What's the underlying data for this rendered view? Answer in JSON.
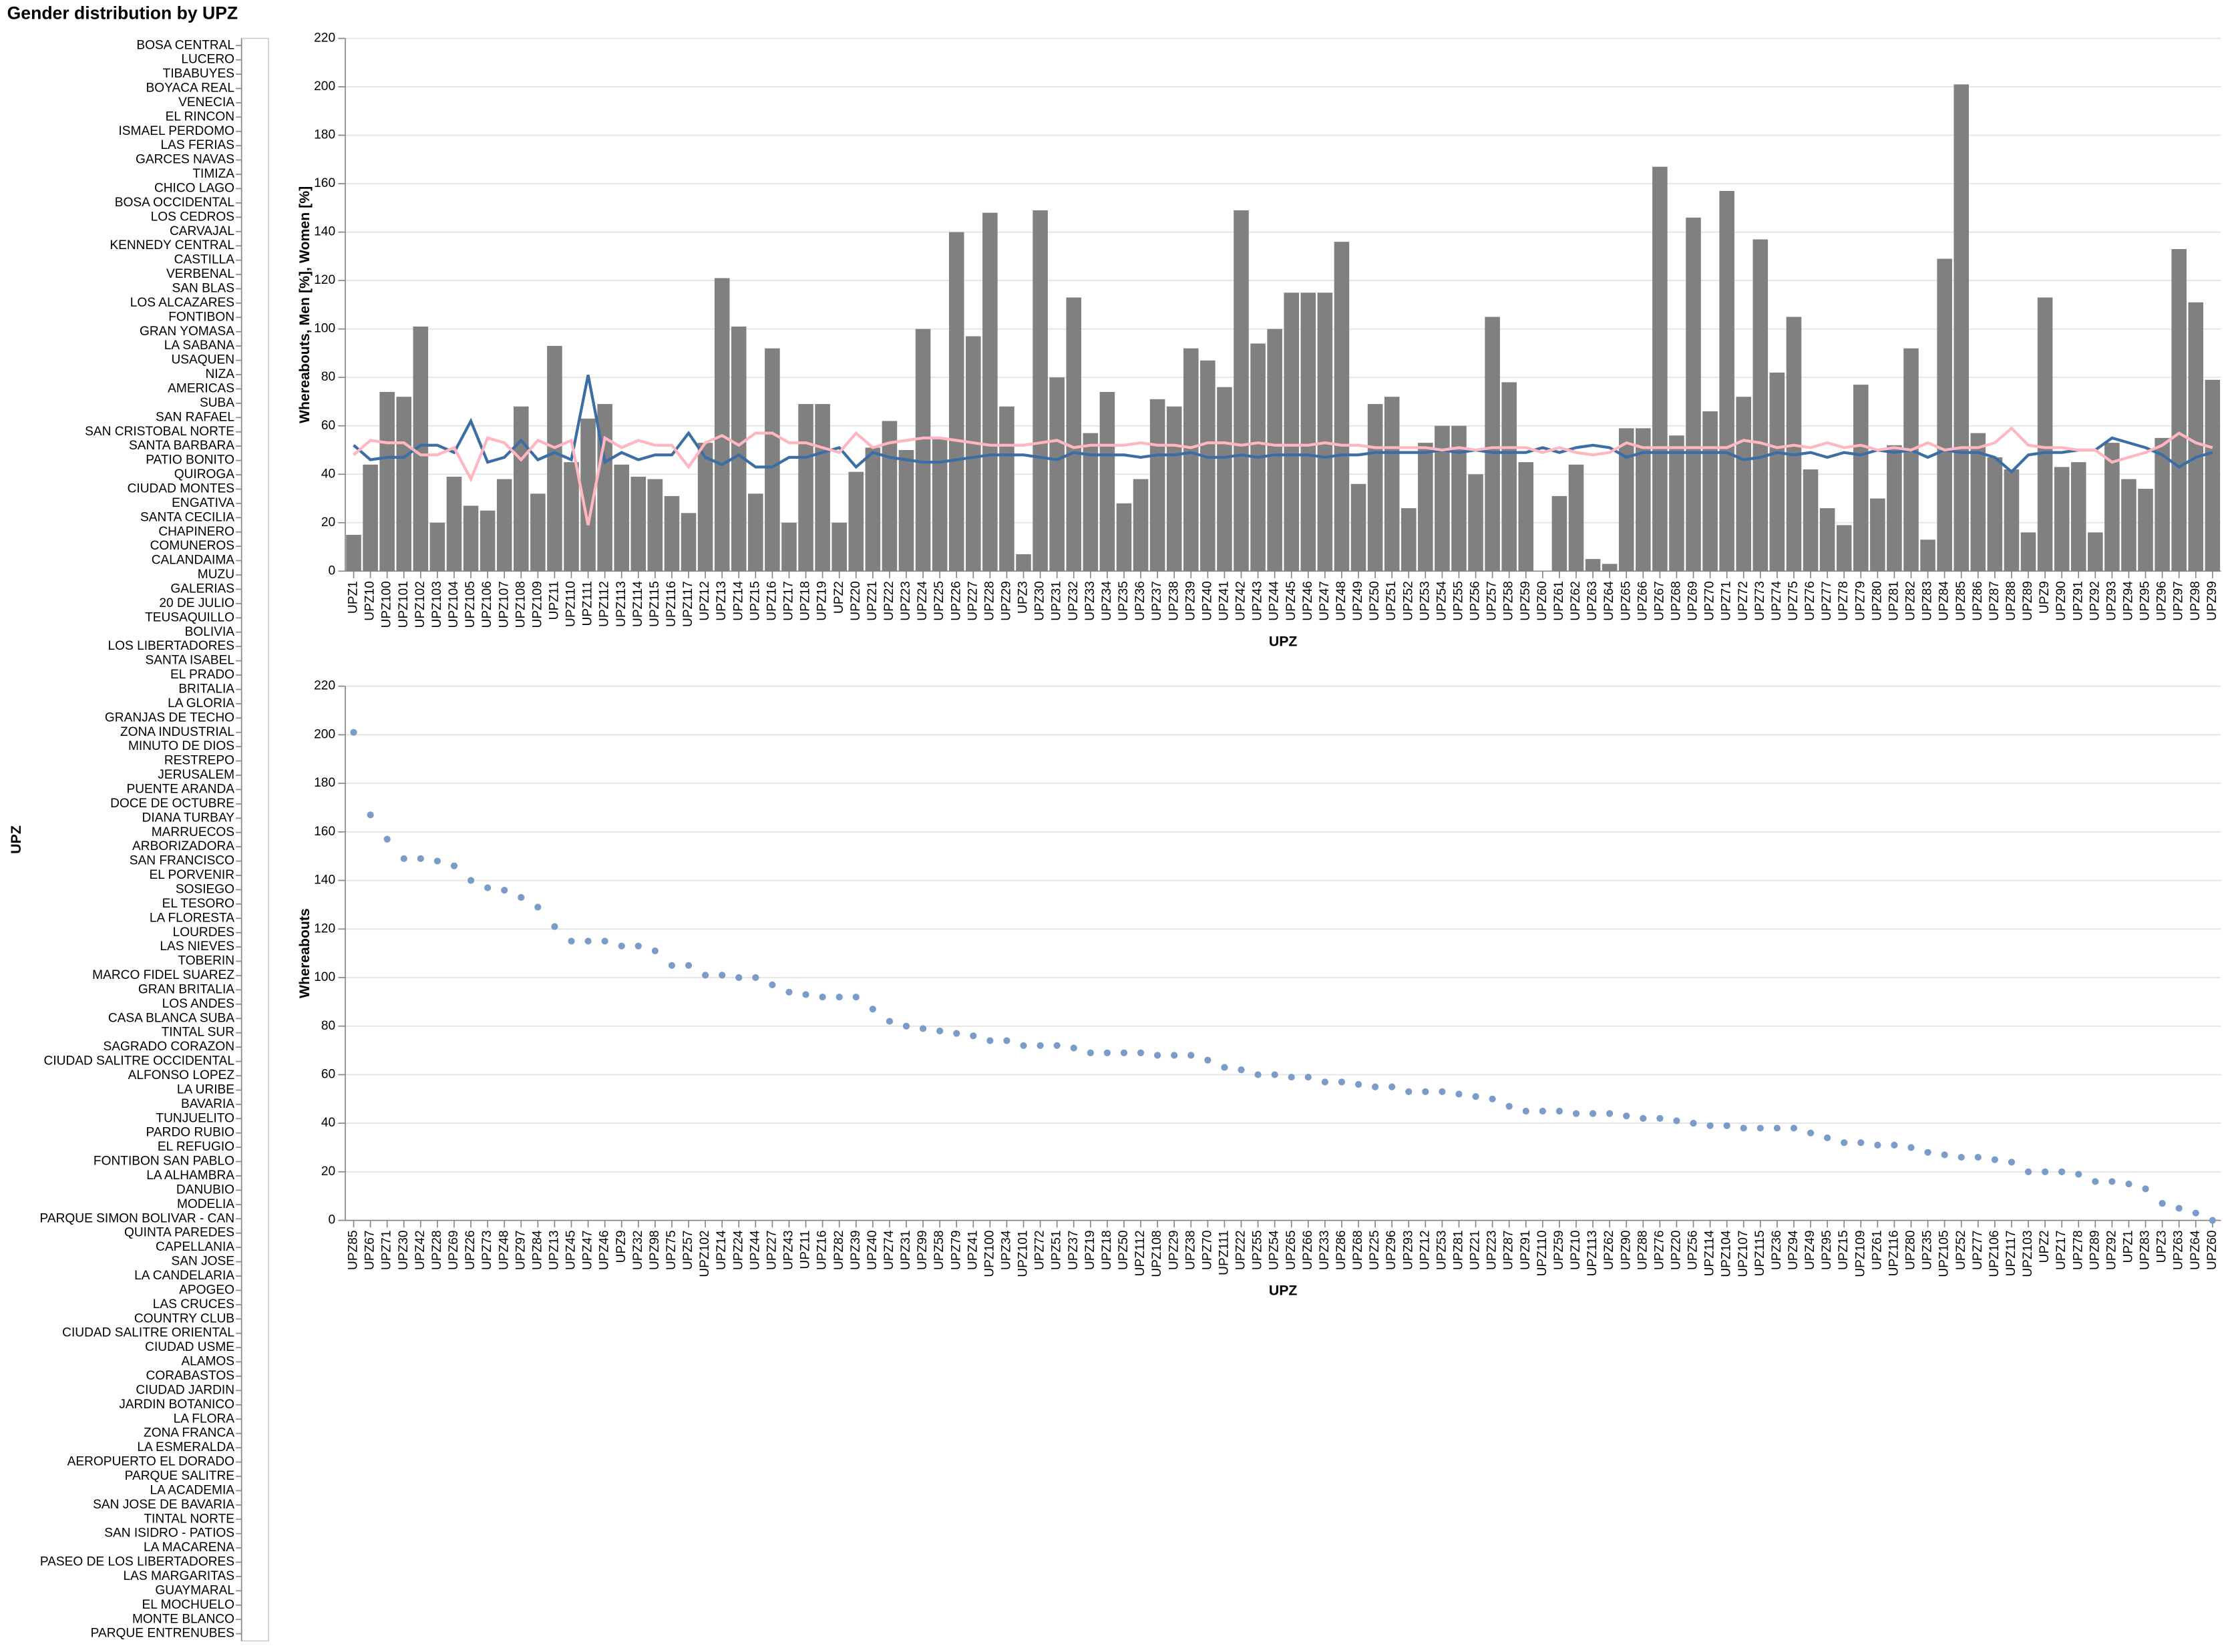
{
  "chart_data": [
    {
      "type": "strip",
      "title": "Gender distribution by UPZ",
      "y_label": "UPZ",
      "categories": [
        "BOSA CENTRAL",
        "LUCERO",
        "TIBABUYES",
        "BOYACA REAL",
        "VENECIA",
        "EL RINCON",
        "ISMAEL PERDOMO",
        "LAS FERIAS",
        "GARCES NAVAS",
        "TIMIZA",
        "CHICO LAGO",
        "BOSA OCCIDENTAL",
        "LOS CEDROS",
        "CARVAJAL",
        "KENNEDY CENTRAL",
        "CASTILLA",
        "VERBENAL",
        "SAN BLAS",
        "LOS ALCAZARES",
        "FONTIBON",
        "GRAN YOMASA",
        "LA SABANA",
        "USAQUEN",
        "NIZA",
        "AMERICAS",
        "SUBA",
        "SAN RAFAEL",
        "SAN CRISTOBAL NORTE",
        "SANTA BARBARA",
        "PATIO BONITO",
        "QUIROGA",
        "CIUDAD MONTES",
        "ENGATIVA",
        "SANTA CECILIA",
        "CHAPINERO",
        "COMUNEROS",
        "CALANDAIMA",
        "MUZU",
        "GALERIAS",
        "20 DE JULIO",
        "TEUSAQUILLO",
        "BOLIVIA",
        "LOS LIBERTADORES",
        "SANTA ISABEL",
        "EL PRADO",
        "BRITALIA",
        "LA GLORIA",
        "GRANJAS DE TECHO",
        "ZONA INDUSTRIAL",
        "MINUTO DE DIOS",
        "RESTREPO",
        "JERUSALEM",
        "PUENTE ARANDA",
        "DOCE DE OCTUBRE",
        "DIANA TURBAY",
        "MARRUECOS",
        "ARBORIZADORA",
        "SAN FRANCISCO",
        "EL PORVENIR",
        "SOSIEGO",
        "EL TESORO",
        "LA FLORESTA",
        "LOURDES",
        "LAS NIEVES",
        "TOBERIN",
        "MARCO FIDEL SUAREZ",
        "GRAN BRITALIA",
        "LOS ANDES",
        "CASA BLANCA SUBA",
        "TINTAL SUR",
        "SAGRADO CORAZON",
        "CIUDAD SALITRE OCCIDENTAL",
        "ALFONSO LOPEZ",
        "LA URIBE",
        "BAVARIA",
        "TUNJUELITO",
        "PARDO RUBIO",
        "EL REFUGIO",
        "FONTIBON SAN PABLO",
        "LA ALHAMBRA",
        "DANUBIO",
        "MODELIA",
        "PARQUE SIMON BOLIVAR - CAN",
        "QUINTA PAREDES",
        "CAPELLANIA",
        "SAN JOSE",
        "LA CANDELARIA",
        "APOGEO",
        "LAS CRUCES",
        "COUNTRY CLUB",
        "CIUDAD SALITRE ORIENTAL",
        "CIUDAD USME",
        "ALAMOS",
        "CORABASTOS",
        "CIUDAD JARDIN",
        "JARDIN BOTANICO",
        "LA FLORA",
        "ZONA FRANCA",
        "LA ESMERALDA",
        "AEROPUERTO EL DORADO",
        "PARQUE SALITRE",
        "LA ACADEMIA",
        "SAN JOSE DE BAVARIA",
        "TINTAL NORTE",
        "SAN ISIDRO - PATIOS",
        "LA MACARENA",
        "PASEO DE LOS LIBERTADORES",
        "LAS MARGARITAS",
        "GUAYMARAL",
        "EL MOCHUELO",
        "MONTE BLANCO",
        "PARQUE ENTRENUBES"
      ]
    },
    {
      "type": "bar",
      "x_label": "UPZ",
      "y_label": "Whereabouts, Men [%], Women [%]",
      "categories": [
        "UPZ1",
        "UPZ10",
        "UPZ100",
        "UPZ101",
        "UPZ102",
        "UPZ103",
        "UPZ104",
        "UPZ105",
        "UPZ106",
        "UPZ107",
        "UPZ108",
        "UPZ109",
        "UPZ11",
        "UPZ110",
        "UPZ111",
        "UPZ112",
        "UPZ113",
        "UPZ114",
        "UPZ115",
        "UPZ116",
        "UPZ117",
        "UPZ12",
        "UPZ13",
        "UPZ14",
        "UPZ15",
        "UPZ16",
        "UPZ17",
        "UPZ18",
        "UPZ19",
        "UPZ2",
        "UPZ20",
        "UPZ21",
        "UPZ22",
        "UPZ23",
        "UPZ24",
        "UPZ25",
        "UPZ26",
        "UPZ27",
        "UPZ28",
        "UPZ29",
        "UPZ3",
        "UPZ30",
        "UPZ31",
        "UPZ32",
        "UPZ33",
        "UPZ34",
        "UPZ35",
        "UPZ36",
        "UPZ37",
        "UPZ38",
        "UPZ39",
        "UPZ40",
        "UPZ41",
        "UPZ42",
        "UPZ43",
        "UPZ44",
        "UPZ45",
        "UPZ46",
        "UPZ47",
        "UPZ48",
        "UPZ49",
        "UPZ50",
        "UPZ51",
        "UPZ52",
        "UPZ53",
        "UPZ54",
        "UPZ55",
        "UPZ56",
        "UPZ57",
        "UPZ58",
        "UPZ59",
        "UPZ60",
        "UPZ61",
        "UPZ62",
        "UPZ63",
        "UPZ64",
        "UPZ65",
        "UPZ66",
        "UPZ67",
        "UPZ68",
        "UPZ69",
        "UPZ70",
        "UPZ71",
        "UPZ72",
        "UPZ73",
        "UPZ74",
        "UPZ75",
        "UPZ76",
        "UPZ77",
        "UPZ78",
        "UPZ79",
        "UPZ80",
        "UPZ81",
        "UPZ82",
        "UPZ83",
        "UPZ84",
        "UPZ85",
        "UPZ86",
        "UPZ87",
        "UPZ88",
        "UPZ89",
        "UPZ9",
        "UPZ90",
        "UPZ91",
        "UPZ92",
        "UPZ93",
        "UPZ94",
        "UPZ95",
        "UPZ96",
        "UPZ97",
        "UPZ98",
        "UPZ99"
      ],
      "series": [
        {
          "mark": "bar",
          "color": "#808080",
          "values": [
            15,
            44,
            74,
            72,
            101,
            20,
            39,
            27,
            25,
            38,
            68,
            32,
            93,
            45,
            63,
            69,
            44,
            39,
            38,
            31,
            24,
            53,
            121,
            101,
            32,
            92,
            20,
            69,
            69,
            20,
            41,
            51,
            62,
            50,
            100,
            55,
            140,
            97,
            148,
            68,
            7,
            149,
            80,
            113,
            57,
            74,
            28,
            38,
            71,
            68,
            92,
            87,
            76,
            149,
            94,
            100,
            115,
            115,
            115,
            136,
            36,
            69,
            72,
            26,
            53,
            60,
            60,
            40,
            105,
            78,
            45,
            0,
            31,
            44,
            5,
            3,
            59,
            59,
            167,
            56,
            146,
            66,
            157,
            72,
            137,
            82,
            105,
            42,
            26,
            19,
            77,
            30,
            52,
            92,
            13,
            129,
            201,
            57,
            47,
            42,
            16,
            113,
            43,
            45,
            16,
            53,
            38,
            34,
            55,
            133,
            111,
            79
          ]
        },
        {
          "mark": "line",
          "color": "#3b6ea5",
          "values": [
            52,
            46,
            47,
            47,
            52,
            52,
            49,
            62,
            45,
            47,
            54,
            46,
            49,
            46,
            81,
            45,
            49,
            46,
            48,
            48,
            57,
            47,
            44,
            48,
            43,
            43,
            47,
            47,
            49,
            51,
            43,
            49,
            47,
            46,
            45,
            45,
            46,
            47,
            48,
            48,
            48,
            47,
            46,
            49,
            48,
            48,
            48,
            47,
            48,
            48,
            49,
            47,
            47,
            48,
            47,
            48,
            48,
            48,
            47,
            48,
            48,
            49,
            49,
            49,
            49,
            50,
            49,
            50,
            49,
            49,
            49,
            51,
            49,
            51,
            52,
            51,
            47,
            49,
            49,
            49,
            49,
            49,
            49,
            46,
            47,
            49,
            48,
            49,
            47,
            49,
            48,
            50,
            49,
            50,
            47,
            50,
            49,
            49,
            47,
            41,
            48,
            49,
            49,
            50,
            50,
            55,
            53,
            51,
            48,
            43,
            47,
            49
          ]
        },
        {
          "mark": "line",
          "color": "#ffb6c1",
          "values": [
            48,
            54,
            53,
            53,
            48,
            48,
            51,
            38,
            55,
            53,
            46,
            54,
            51,
            54,
            19,
            55,
            51,
            54,
            52,
            52,
            43,
            53,
            56,
            52,
            57,
            57,
            53,
            53,
            51,
            49,
            57,
            51,
            53,
            54,
            55,
            55,
            54,
            53,
            52,
            52,
            52,
            53,
            54,
            51,
            52,
            52,
            52,
            53,
            52,
            52,
            51,
            53,
            53,
            52,
            53,
            52,
            52,
            52,
            53,
            52,
            52,
            51,
            51,
            51,
            51,
            50,
            51,
            50,
            51,
            51,
            51,
            49,
            51,
            49,
            48,
            49,
            53,
            51,
            51,
            51,
            51,
            51,
            51,
            54,
            53,
            51,
            52,
            51,
            53,
            51,
            52,
            50,
            51,
            50,
            53,
            50,
            51,
            51,
            53,
            59,
            52,
            51,
            51,
            50,
            50,
            45,
            47,
            49,
            52,
            57,
            53,
            51
          ]
        }
      ],
      "ylim": [
        0,
        220
      ],
      "yticks": [
        0,
        20,
        40,
        60,
        80,
        100,
        120,
        140,
        160,
        180,
        200,
        220
      ],
      "grid": true
    },
    {
      "type": "scatter",
      "x_label": "UPZ",
      "y_label": "Whereabouts",
      "color": "#7b9cc9",
      "categories": [
        "UPZ85",
        "UPZ67",
        "UPZ71",
        "UPZ30",
        "UPZ42",
        "UPZ28",
        "UPZ69",
        "UPZ26",
        "UPZ73",
        "UPZ48",
        "UPZ97",
        "UPZ84",
        "UPZ13",
        "UPZ45",
        "UPZ47",
        "UPZ46",
        "UPZ9",
        "UPZ32",
        "UPZ98",
        "UPZ75",
        "UPZ57",
        "UPZ102",
        "UPZ14",
        "UPZ24",
        "UPZ44",
        "UPZ27",
        "UPZ43",
        "UPZ11",
        "UPZ16",
        "UPZ82",
        "UPZ39",
        "UPZ40",
        "UPZ74",
        "UPZ31",
        "UPZ99",
        "UPZ58",
        "UPZ79",
        "UPZ41",
        "UPZ100",
        "UPZ34",
        "UPZ101",
        "UPZ72",
        "UPZ51",
        "UPZ37",
        "UPZ19",
        "UPZ18",
        "UPZ50",
        "UPZ112",
        "UPZ108",
        "UPZ29",
        "UPZ38",
        "UPZ70",
        "UPZ111",
        "UPZ22",
        "UPZ55",
        "UPZ54",
        "UPZ65",
        "UPZ66",
        "UPZ33",
        "UPZ86",
        "UPZ68",
        "UPZ25",
        "UPZ96",
        "UPZ93",
        "UPZ12",
        "UPZ53",
        "UPZ81",
        "UPZ21",
        "UPZ23",
        "UPZ87",
        "UPZ91",
        "UPZ110",
        "UPZ59",
        "UPZ10",
        "UPZ113",
        "UPZ62",
        "UPZ90",
        "UPZ88",
        "UPZ76",
        "UPZ20",
        "UPZ56",
        "UPZ114",
        "UPZ104",
        "UPZ107",
        "UPZ115",
        "UPZ36",
        "UPZ94",
        "UPZ49",
        "UPZ95",
        "UPZ15",
        "UPZ109",
        "UPZ61",
        "UPZ116",
        "UPZ80",
        "UPZ35",
        "UPZ105",
        "UPZ52",
        "UPZ77",
        "UPZ106",
        "UPZ117",
        "UPZ103",
        "UPZ2",
        "UPZ17",
        "UPZ78",
        "UPZ89",
        "UPZ92",
        "UPZ1",
        "UPZ83",
        "UPZ3",
        "UPZ63",
        "UPZ64",
        "UPZ60"
      ],
      "values": [
        201,
        167,
        157,
        149,
        149,
        148,
        146,
        140,
        137,
        136,
        133,
        129,
        121,
        115,
        115,
        115,
        113,
        113,
        111,
        105,
        105,
        101,
        101,
        100,
        100,
        97,
        94,
        93,
        92,
        92,
        92,
        87,
        82,
        80,
        79,
        78,
        77,
        76,
        74,
        74,
        72,
        72,
        72,
        71,
        69,
        69,
        69,
        69,
        68,
        68,
        68,
        66,
        63,
        62,
        60,
        60,
        59,
        59,
        57,
        57,
        56,
        55,
        55,
        53,
        53,
        53,
        52,
        51,
        50,
        47,
        45,
        45,
        45,
        44,
        44,
        44,
        43,
        42,
        42,
        41,
        40,
        39,
        39,
        38,
        38,
        38,
        38,
        36,
        34,
        32,
        32,
        31,
        31,
        30,
        28,
        27,
        26,
        26,
        25,
        24,
        20,
        20,
        20,
        19,
        16,
        16,
        15,
        13,
        7,
        5,
        3,
        0
      ],
      "ylim": [
        0,
        220
      ],
      "yticks": [
        0,
        20,
        40,
        60,
        80,
        100,
        120,
        140,
        160,
        180,
        200,
        220
      ],
      "grid": true
    }
  ]
}
